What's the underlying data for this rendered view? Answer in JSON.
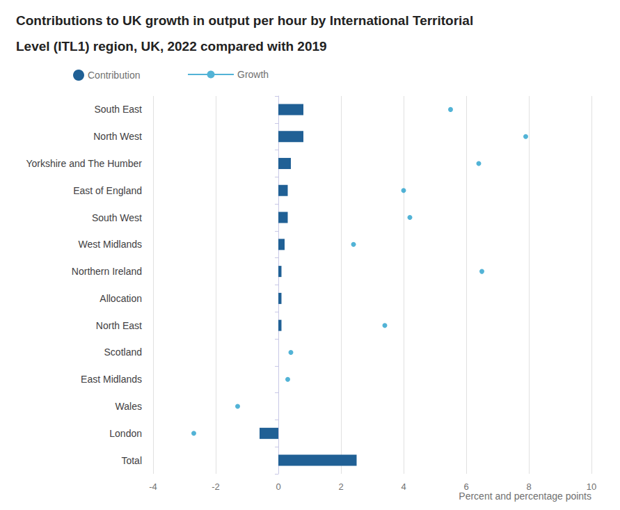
{
  "chart_data": {
    "type": "bar",
    "orientation": "horizontal",
    "title": "Contributions to UK growth in output per hour by International Territorial\nLevel (ITL1) region, UK, 2022 compared with 2019",
    "x_label": "Percent and percentage points",
    "categories": [
      "South East",
      "North West",
      "Yorkshire and The Humber",
      "East of England",
      "South West",
      "West Midlands",
      "Northern Ireland",
      "Allocation",
      "North East",
      "Scotland",
      "East Midlands",
      "Wales",
      "London",
      "Total"
    ],
    "series": [
      {
        "name": "Contribution",
        "type": "bar",
        "color": "#206095",
        "values": [
          0.8,
          0.8,
          0.4,
          0.3,
          0.3,
          0.2,
          0.1,
          0.1,
          0.1,
          0.0,
          0.0,
          0.0,
          -0.6,
          2.5
        ]
      },
      {
        "name": "Growth",
        "type": "scatter",
        "marker": "circle",
        "color": "#27a0cc",
        "values": [
          5.5,
          7.9,
          6.4,
          4.0,
          4.2,
          2.4,
          6.5,
          null,
          3.4,
          0.4,
          0.3,
          -1.3,
          -2.7,
          null
        ]
      }
    ],
    "xlim": [
      -4,
      10
    ],
    "xticks": [
      -4,
      -2,
      0,
      2,
      4,
      6,
      8,
      10
    ],
    "grid": true,
    "legend": "top"
  }
}
